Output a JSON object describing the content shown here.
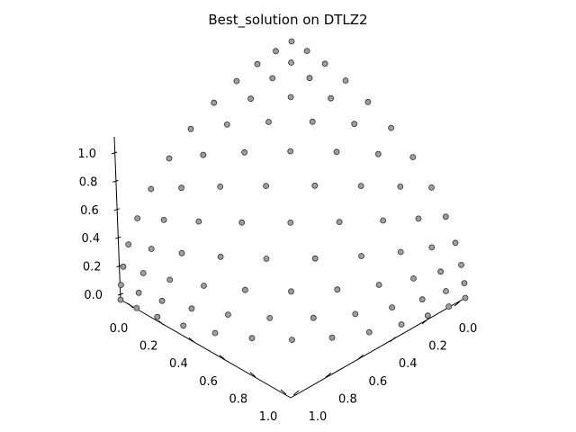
{
  "chart_data": {
    "type": "scatter",
    "title": "Best_solution on DTLZ2",
    "xlabel": "",
    "ylabel": "",
    "zlabel": "",
    "xlim": [
      0,
      1
    ],
    "ylim": [
      0,
      1
    ],
    "zlim": [
      0,
      1
    ],
    "x_ticks": [
      "0.0",
      "0.2",
      "0.4",
      "0.6",
      "0.8",
      "1.0"
    ],
    "y_ticks": [
      "0.0",
      "0.2",
      "0.4",
      "0.6",
      "0.8",
      "1.0"
    ],
    "z_ticks": [
      "0.0",
      "0.2",
      "0.4",
      "0.6",
      "0.8",
      "1.0"
    ],
    "grid": false,
    "marker_color": "#9e9e9e",
    "marker_edge_color": "#333333",
    "reference_points_per_objective": 12,
    "points_description": "uniformly spread solutions on the unit-sphere Pareto front of DTLZ2 (f1^2+f2^2+f3^2=1)"
  }
}
